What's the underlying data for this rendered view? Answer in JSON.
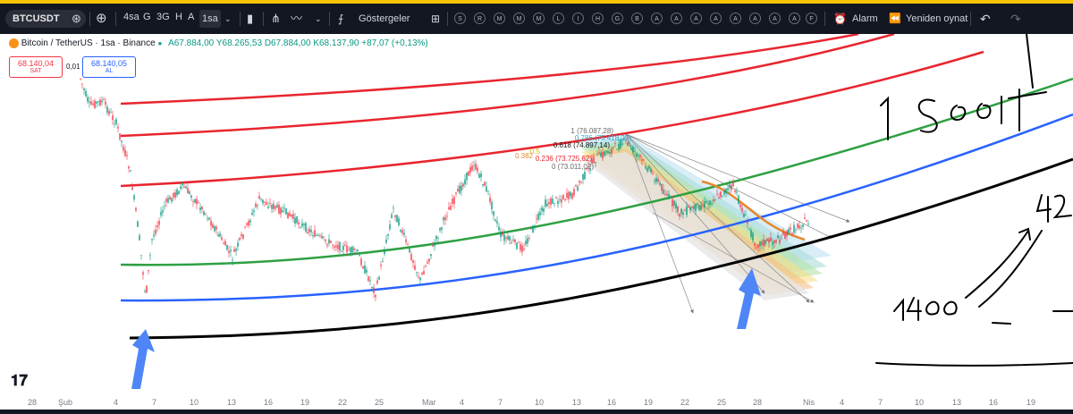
{
  "toolbar": {
    "symbol": "BTCUSDT",
    "intervals": [
      "4sa",
      "G",
      "3G",
      "H",
      "A",
      "1sa"
    ],
    "active_interval": "1sa",
    "indicators_label": "Göstergeler",
    "drawing_letters": [
      "S",
      "R",
      "M",
      "M",
      "M",
      "L",
      "I",
      "H",
      "G",
      "B",
      "A",
      "A",
      "A",
      "A",
      "A",
      "A",
      "A",
      "A",
      "F"
    ],
    "alarm_label": "Alarm",
    "replay_label": "Yeniden oynat"
  },
  "legend": {
    "title": "Bitcoin / TetherUS · 1sa · Binance",
    "open": "A67.884,00",
    "high": "Y68.265,53",
    "low": "D67.884,00",
    "close": "K68.137,90",
    "change": "+87,07 (+0,13%)"
  },
  "trade": {
    "sell_price": "68.140,04",
    "sell_label": "SAT",
    "spread": "0,01",
    "buy_price": "68.140,05",
    "buy_label": "AL"
  },
  "fib_labels": [
    "1 (76.087,28)",
    "0.786 (75.418,25)",
    "0.618 (74.897,14)",
    "0.5",
    "0.382",
    "0.236 (73.725,62)",
    "0 (73.011,02)"
  ],
  "x_axis_labels": [
    "28",
    "Şub",
    "4",
    "7",
    "10",
    "13",
    "16",
    "19",
    "22",
    "25",
    "Mar",
    "4",
    "7",
    "10",
    "13",
    "16",
    "19",
    "22",
    "25",
    "28",
    "Nis",
    "4",
    "7",
    "10",
    "13",
    "16",
    "19"
  ],
  "handwriting": {
    "note1": "1 saat",
    "note2": "1400",
    "note3": "42"
  },
  "colors": {
    "toolbar_bg": "#131722",
    "bull": "#089981",
    "bear": "#f23645",
    "red_arc": "#e8252f",
    "green_arc": "#2ea043",
    "blue_arc": "#2962ff",
    "black_arc": "#000000",
    "arrow": "#4f86f7",
    "orange_line": "#e8862b"
  }
}
